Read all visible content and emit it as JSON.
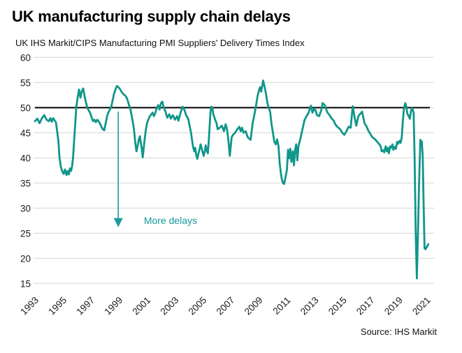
{
  "header": {
    "title": "UK manufacturing supply chain delays",
    "subtitle": "UK IHS Markit/CIPS Manufacturing PMI Suppliers' Delivery Times Index"
  },
  "footer": {
    "source": "Source: IHS Markit"
  },
  "colors": {
    "line": "#10968a",
    "annotation": "#1b9aa0",
    "grid": "#d9d9d9",
    "reference_line": "#111111",
    "axis_text": "#1a1a1a"
  },
  "chart_data": {
    "type": "line",
    "title": "UK manufacturing supply chain delays",
    "subtitle": "UK IHS Markit/CIPS Manufacturing PMI Suppliers' Delivery Times Index",
    "ylabel": "",
    "xlabel": "",
    "ylim": [
      15,
      60
    ],
    "y_ticks": [
      60,
      55,
      50,
      45,
      40,
      35,
      30,
      25,
      20,
      15
    ],
    "x_ticks": [
      1993,
      1995,
      1997,
      1999,
      2001,
      2003,
      2005,
      2007,
      2009,
      2011,
      2013,
      2015,
      2017,
      2019,
      2021
    ],
    "x_range": [
      1993,
      2021.55
    ],
    "grid": true,
    "legend": false,
    "reference_line": {
      "value": 50
    },
    "annotation": {
      "label": "More delays",
      "arrow_x_year": 1998.95,
      "arrow_from_value": 49.2,
      "arrow_to_value": 26.2,
      "label_x_year": 2000.78,
      "label_value": 27.5
    },
    "series": [
      {
        "name": "Suppliers' Delivery Times Index",
        "points": [
          [
            1993.0,
            47.3
          ],
          [
            1993.17,
            47.8
          ],
          [
            1993.33,
            46.9
          ],
          [
            1993.5,
            47.9
          ],
          [
            1993.67,
            48.5
          ],
          [
            1993.83,
            47.6
          ],
          [
            1994.0,
            47.3
          ],
          [
            1994.1,
            47.9
          ],
          [
            1994.2,
            47.2
          ],
          [
            1994.3,
            47.9
          ],
          [
            1994.42,
            47.4
          ],
          [
            1994.5,
            47.1
          ],
          [
            1994.58,
            45.5
          ],
          [
            1994.67,
            43.4
          ],
          [
            1994.75,
            40.1
          ],
          [
            1994.85,
            38.2
          ],
          [
            1994.95,
            37.3
          ],
          [
            1995.05,
            36.8
          ],
          [
            1995.15,
            37.7
          ],
          [
            1995.25,
            36.6
          ],
          [
            1995.35,
            37.4
          ],
          [
            1995.42,
            36.7
          ],
          [
            1995.5,
            37.9
          ],
          [
            1995.58,
            37.4
          ],
          [
            1995.65,
            38.3
          ],
          [
            1995.72,
            40.0
          ],
          [
            1995.8,
            43.6
          ],
          [
            1995.88,
            46.8
          ],
          [
            1995.95,
            50.1
          ],
          [
            1996.05,
            52.0
          ],
          [
            1996.15,
            53.6
          ],
          [
            1996.25,
            52.0
          ],
          [
            1996.35,
            53.3
          ],
          [
            1996.45,
            53.8
          ],
          [
            1996.55,
            52.2
          ],
          [
            1996.65,
            51.0
          ],
          [
            1996.75,
            49.9
          ],
          [
            1996.85,
            49.4
          ],
          [
            1996.95,
            48.9
          ],
          [
            1997.05,
            48.1
          ],
          [
            1997.15,
            47.3
          ],
          [
            1997.25,
            47.6
          ],
          [
            1997.35,
            47.1
          ],
          [
            1997.45,
            47.6
          ],
          [
            1997.55,
            47.3
          ],
          [
            1997.65,
            46.8
          ],
          [
            1997.75,
            46.2
          ],
          [
            1997.85,
            45.7
          ],
          [
            1997.95,
            45.5
          ],
          [
            1998.05,
            46.9
          ],
          [
            1998.15,
            48.3
          ],
          [
            1998.25,
            49.1
          ],
          [
            1998.35,
            49.6
          ],
          [
            1998.45,
            50.2
          ],
          [
            1998.55,
            51.5
          ],
          [
            1998.65,
            52.8
          ],
          [
            1998.75,
            53.6
          ],
          [
            1998.85,
            54.3
          ],
          [
            1998.95,
            54.1
          ],
          [
            1999.05,
            53.8
          ],
          [
            1999.15,
            53.3
          ],
          [
            1999.25,
            52.9
          ],
          [
            1999.35,
            52.6
          ],
          [
            1999.45,
            52.4
          ],
          [
            1999.55,
            52.0
          ],
          [
            1999.65,
            51.2
          ],
          [
            1999.72,
            50.5
          ],
          [
            1999.8,
            50.0
          ],
          [
            1999.88,
            48.8
          ],
          [
            1999.95,
            47.8
          ],
          [
            2000.03,
            46.5
          ],
          [
            2000.1,
            45.0
          ],
          [
            2000.17,
            43.0
          ],
          [
            2000.25,
            41.3
          ],
          [
            2000.33,
            42.3
          ],
          [
            2000.42,
            43.7
          ],
          [
            2000.5,
            44.3
          ],
          [
            2000.56,
            43.0
          ],
          [
            2000.62,
            42.1
          ],
          [
            2000.7,
            40.1
          ],
          [
            2000.78,
            42.2
          ],
          [
            2000.85,
            44.0
          ],
          [
            2000.93,
            45.7
          ],
          [
            2001.0,
            46.8
          ],
          [
            2001.1,
            47.6
          ],
          [
            2001.2,
            48.3
          ],
          [
            2001.3,
            48.6
          ],
          [
            2001.4,
            49.0
          ],
          [
            2001.5,
            48.3
          ],
          [
            2001.6,
            49.0
          ],
          [
            2001.7,
            49.9
          ],
          [
            2001.8,
            50.5
          ],
          [
            2001.9,
            49.6
          ],
          [
            2002.0,
            50.9
          ],
          [
            2002.1,
            51.2
          ],
          [
            2002.2,
            50.0
          ],
          [
            2002.3,
            49.4
          ],
          [
            2002.45,
            48.0
          ],
          [
            2002.6,
            48.7
          ],
          [
            2002.7,
            47.8
          ],
          [
            2002.85,
            48.5
          ],
          [
            2003.0,
            47.6
          ],
          [
            2003.15,
            48.3
          ],
          [
            2003.25,
            47.4
          ],
          [
            2003.4,
            49.0
          ],
          [
            2003.55,
            50.2
          ],
          [
            2003.7,
            49.4
          ],
          [
            2003.8,
            48.5
          ],
          [
            2003.95,
            47.8
          ],
          [
            2004.05,
            46.4
          ],
          [
            2004.15,
            45.0
          ],
          [
            2004.22,
            43.6
          ],
          [
            2004.3,
            42.2
          ],
          [
            2004.38,
            41.3
          ],
          [
            2004.45,
            42.0
          ],
          [
            2004.52,
            40.6
          ],
          [
            2004.6,
            39.8
          ],
          [
            2004.68,
            40.9
          ],
          [
            2004.75,
            41.6
          ],
          [
            2004.83,
            42.7
          ],
          [
            2004.9,
            42.0
          ],
          [
            2004.98,
            41.1
          ],
          [
            2005.05,
            40.4
          ],
          [
            2005.13,
            41.3
          ],
          [
            2005.2,
            42.5
          ],
          [
            2005.28,
            41.4
          ],
          [
            2005.35,
            40.9
          ],
          [
            2005.42,
            43.6
          ],
          [
            2005.48,
            46.4
          ],
          [
            2005.54,
            49.2
          ],
          [
            2005.6,
            50.2
          ],
          [
            2005.67,
            50.0
          ],
          [
            2005.74,
            48.7
          ],
          [
            2005.82,
            48.0
          ],
          [
            2005.9,
            47.4
          ],
          [
            2005.97,
            46.9
          ],
          [
            2006.05,
            45.7
          ],
          [
            2006.2,
            46.0
          ],
          [
            2006.35,
            46.4
          ],
          [
            2006.5,
            45.3
          ],
          [
            2006.62,
            46.7
          ],
          [
            2006.72,
            45.7
          ],
          [
            2006.82,
            43.4
          ],
          [
            2006.92,
            40.4
          ],
          [
            2007.05,
            44.1
          ],
          [
            2007.15,
            44.6
          ],
          [
            2007.3,
            45.0
          ],
          [
            2007.45,
            45.7
          ],
          [
            2007.6,
            46.2
          ],
          [
            2007.7,
            45.3
          ],
          [
            2007.8,
            46.0
          ],
          [
            2007.9,
            45.0
          ],
          [
            2008.05,
            45.3
          ],
          [
            2008.2,
            44.1
          ],
          [
            2008.4,
            43.6
          ],
          [
            2008.55,
            46.9
          ],
          [
            2008.7,
            49.0
          ],
          [
            2008.8,
            50.6
          ],
          [
            2008.9,
            52.3
          ],
          [
            2009.0,
            53.4
          ],
          [
            2009.08,
            54.1
          ],
          [
            2009.16,
            53.2
          ],
          [
            2009.3,
            55.4
          ],
          [
            2009.4,
            54.2
          ],
          [
            2009.5,
            52.8
          ],
          [
            2009.6,
            51.0
          ],
          [
            2009.7,
            49.9
          ],
          [
            2009.8,
            49.2
          ],
          [
            2009.9,
            46.7
          ],
          [
            2010.0,
            45.0
          ],
          [
            2010.1,
            43.2
          ],
          [
            2010.2,
            42.7
          ],
          [
            2010.3,
            43.7
          ],
          [
            2010.4,
            42.3
          ],
          [
            2010.48,
            39.0
          ],
          [
            2010.56,
            37.1
          ],
          [
            2010.64,
            35.7
          ],
          [
            2010.72,
            35.0
          ],
          [
            2010.8,
            34.8
          ],
          [
            2010.9,
            36.2
          ],
          [
            2011.0,
            37.6
          ],
          [
            2011.08,
            41.6
          ],
          [
            2011.16,
            39.9
          ],
          [
            2011.24,
            41.8
          ],
          [
            2011.32,
            39.2
          ],
          [
            2011.42,
            41.3
          ],
          [
            2011.5,
            38.5
          ],
          [
            2011.58,
            41.6
          ],
          [
            2011.66,
            42.7
          ],
          [
            2011.74,
            39.5
          ],
          [
            2011.82,
            42.3
          ],
          [
            2011.95,
            43.7
          ],
          [
            2012.05,
            45.0
          ],
          [
            2012.15,
            46.2
          ],
          [
            2012.25,
            47.5
          ],
          [
            2012.4,
            48.3
          ],
          [
            2012.55,
            49.0
          ],
          [
            2012.65,
            49.9
          ],
          [
            2012.72,
            50.4
          ],
          [
            2012.82,
            49.0
          ],
          [
            2012.95,
            49.8
          ],
          [
            2013.05,
            49.4
          ],
          [
            2013.15,
            48.5
          ],
          [
            2013.3,
            48.3
          ],
          [
            2013.45,
            49.5
          ],
          [
            2013.55,
            50.9
          ],
          [
            2013.7,
            50.5
          ],
          [
            2013.8,
            49.7
          ],
          [
            2013.9,
            49.0
          ],
          [
            2014.05,
            48.5
          ],
          [
            2014.2,
            47.8
          ],
          [
            2014.35,
            47.4
          ],
          [
            2014.45,
            46.7
          ],
          [
            2014.6,
            46.2
          ],
          [
            2014.8,
            45.7
          ],
          [
            2014.95,
            45.0
          ],
          [
            2015.1,
            44.6
          ],
          [
            2015.25,
            45.3
          ],
          [
            2015.4,
            46.2
          ],
          [
            2015.55,
            46.0
          ],
          [
            2015.7,
            50.3
          ],
          [
            2015.85,
            47.8
          ],
          [
            2015.95,
            46.4
          ],
          [
            2016.1,
            48.3
          ],
          [
            2016.25,
            48.8
          ],
          [
            2016.37,
            49.2
          ],
          [
            2016.54,
            46.9
          ],
          [
            2016.7,
            46.2
          ],
          [
            2016.8,
            45.5
          ],
          [
            2016.95,
            44.8
          ],
          [
            2017.1,
            44.1
          ],
          [
            2017.3,
            43.7
          ],
          [
            2017.45,
            43.2
          ],
          [
            2017.6,
            42.7
          ],
          [
            2017.7,
            42.3
          ],
          [
            2017.77,
            41.3
          ],
          [
            2017.86,
            41.5
          ],
          [
            2017.95,
            41.1
          ],
          [
            2018.05,
            42.3
          ],
          [
            2018.13,
            41.3
          ],
          [
            2018.2,
            42.0
          ],
          [
            2018.28,
            40.9
          ],
          [
            2018.37,
            42.3
          ],
          [
            2018.45,
            42.0
          ],
          [
            2018.53,
            42.7
          ],
          [
            2018.6,
            41.6
          ],
          [
            2018.7,
            42.2
          ],
          [
            2018.78,
            41.8
          ],
          [
            2018.87,
            43.2
          ],
          [
            2018.94,
            42.8
          ],
          [
            2019.05,
            43.4
          ],
          [
            2019.12,
            43.0
          ],
          [
            2019.2,
            44.1
          ],
          [
            2019.28,
            47.4
          ],
          [
            2019.36,
            49.9
          ],
          [
            2019.45,
            50.9
          ],
          [
            2019.53,
            50.2
          ],
          [
            2019.6,
            48.8
          ],
          [
            2019.7,
            48.3
          ],
          [
            2019.78,
            47.8
          ],
          [
            2019.87,
            49.5
          ],
          [
            2019.95,
            49.9
          ],
          [
            2020.05,
            49.0
          ],
          [
            2020.12,
            40.0
          ],
          [
            2020.2,
            25.0
          ],
          [
            2020.28,
            16.0
          ],
          [
            2020.36,
            25.0
          ],
          [
            2020.44,
            35.0
          ],
          [
            2020.53,
            43.6
          ],
          [
            2020.58,
            42.6
          ],
          [
            2020.63,
            43.3
          ],
          [
            2020.7,
            40.4
          ],
          [
            2020.76,
            31.5
          ],
          [
            2020.83,
            22.0
          ],
          [
            2020.9,
            21.8
          ],
          [
            2021.0,
            22.3
          ],
          [
            2021.1,
            22.8
          ]
        ]
      }
    ]
  }
}
